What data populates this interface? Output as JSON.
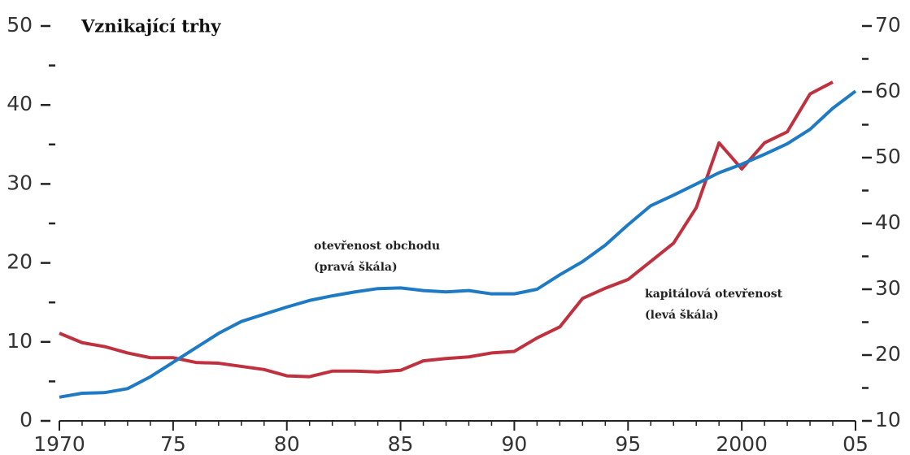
{
  "chart_data": {
    "type": "line",
    "title": "Vznikající trhy",
    "x": [
      1970,
      1971,
      1972,
      1973,
      1974,
      1975,
      1976,
      1977,
      1978,
      1979,
      1980,
      1981,
      1982,
      1983,
      1984,
      1985,
      1986,
      1987,
      1988,
      1989,
      1990,
      1991,
      1992,
      1993,
      1994,
      1995,
      1996,
      1997,
      1998,
      1999,
      2000,
      2001,
      2002,
      2003,
      2004,
      2005
    ],
    "xlim": [
      1970,
      2005
    ],
    "xticks": [
      {
        "value": 1970,
        "label": "1970"
      },
      {
        "value": 1975,
        "label": "75"
      },
      {
        "value": 1980,
        "label": "80"
      },
      {
        "value": 1985,
        "label": "85"
      },
      {
        "value": 1990,
        "label": "90"
      },
      {
        "value": 1995,
        "label": "95"
      },
      {
        "value": 2000,
        "label": "2000"
      },
      {
        "value": 2005,
        "label": "05"
      }
    ],
    "ylim": [
      0,
      50
    ],
    "yticks": [
      0,
      10,
      20,
      30,
      40,
      50
    ],
    "yminor": [
      5,
      15,
      25,
      35,
      45
    ],
    "y2lim": [
      10,
      70
    ],
    "y2ticks": [
      10,
      20,
      30,
      40,
      50,
      60,
      70
    ],
    "y2minor": [
      15,
      25,
      35,
      45,
      55,
      65
    ],
    "series": [
      {
        "name": "kapitálová otevřenost",
        "scale_note": "(levá škála)",
        "color": "#c0313f",
        "axis": "y",
        "values": [
          11.1,
          9.9,
          9.4,
          8.6,
          8.0,
          8.0,
          7.4,
          7.3,
          6.9,
          6.5,
          5.7,
          5.6,
          6.3,
          6.3,
          6.2,
          6.4,
          7.6,
          7.9,
          8.1,
          8.6,
          8.8,
          10.5,
          11.9,
          15.5,
          16.8,
          17.9,
          20.2,
          22.5,
          27.0,
          35.2,
          31.9,
          35.2,
          36.6,
          41.4,
          42.9,
          null
        ]
      },
      {
        "name": "otevřenost obchodu",
        "scale_note": "(pravá škála)",
        "color": "#1f7ac4",
        "axis": "y2",
        "values": [
          13.6,
          14.2,
          14.3,
          14.9,
          16.7,
          18.9,
          21.1,
          23.3,
          25.1,
          26.2,
          27.3,
          28.3,
          29.0,
          29.6,
          30.1,
          30.2,
          29.8,
          29.6,
          29.8,
          29.3,
          29.3,
          30.0,
          32.2,
          34.2,
          36.7,
          39.8,
          42.7,
          44.3,
          46.0,
          47.7,
          49.0,
          50.5,
          52.1,
          54.3,
          57.5,
          60.1
        ]
      }
    ]
  }
}
